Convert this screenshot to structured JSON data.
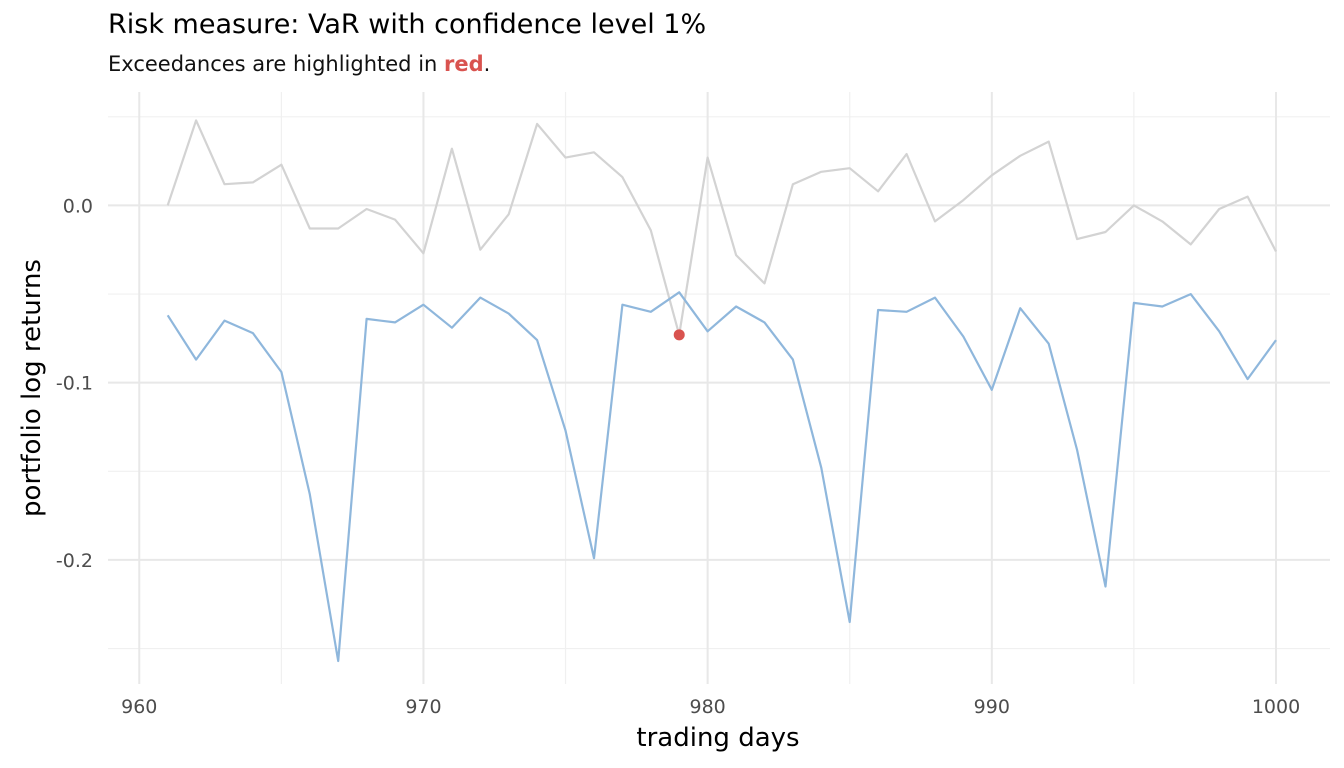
{
  "chart_data": {
    "type": "line",
    "title": "Risk measure: VaR with confidence level 1%",
    "subtitle": {
      "prefix": "Exceedances are highlighted in ",
      "highlight": "red",
      "suffix": "."
    },
    "xlabel": "trading days",
    "ylabel": "portfolio log returns",
    "xlim": [
      958.9,
      1001.9
    ],
    "ylim": [
      -0.27,
      0.064
    ],
    "x_major_ticks": [
      960,
      970,
      980,
      990,
      1000
    ],
    "x_tick_labels": [
      "960",
      "970",
      "980",
      "990",
      "1000"
    ],
    "x_minor_ticks": [
      965,
      975,
      985,
      995
    ],
    "y_major_ticks": [
      0.0,
      -0.1,
      -0.2
    ],
    "y_tick_labels": [
      "0.0",
      "-0.1",
      "-0.2"
    ],
    "y_minor_ticks": [
      0.05,
      -0.05,
      -0.15,
      -0.25
    ],
    "grid": true,
    "x": [
      961,
      962,
      963,
      964,
      965,
      966,
      967,
      968,
      969,
      970,
      971,
      972,
      973,
      974,
      975,
      976,
      977,
      978,
      979,
      980,
      981,
      982,
      983,
      984,
      985,
      986,
      987,
      988,
      989,
      990,
      991,
      992,
      993,
      994,
      995,
      996,
      997,
      998,
      999,
      1000
    ],
    "series": [
      {
        "role": "returns",
        "color": "#d3d3d3",
        "values": [
          0.0,
          0.048,
          0.012,
          0.013,
          0.023,
          -0.013,
          -0.013,
          -0.002,
          -0.008,
          -0.027,
          0.032,
          -0.025,
          -0.005,
          0.046,
          0.027,
          0.03,
          0.016,
          -0.014,
          -0.073,
          0.027,
          -0.028,
          -0.044,
          0.012,
          0.019,
          0.021,
          0.008,
          0.029,
          -0.009,
          0.003,
          0.017,
          0.028,
          0.036,
          -0.019,
          -0.015,
          0.0,
          -0.009,
          -0.022,
          -0.002,
          0.005,
          -0.026
        ]
      },
      {
        "role": "var",
        "color": "#8fb7dc",
        "values": [
          -0.062,
          -0.087,
          -0.065,
          -0.072,
          -0.094,
          -0.163,
          -0.257,
          -0.064,
          -0.066,
          -0.056,
          -0.069,
          -0.052,
          -0.061,
          -0.076,
          -0.127,
          -0.199,
          -0.056,
          -0.06,
          -0.049,
          -0.071,
          -0.057,
          -0.066,
          -0.087,
          -0.148,
          -0.235,
          -0.059,
          -0.06,
          -0.052,
          -0.074,
          -0.104,
          -0.058,
          -0.078,
          -0.138,
          -0.215,
          -0.055,
          -0.057,
          -0.05,
          -0.071,
          -0.098,
          -0.076
        ]
      }
    ],
    "exceedances": [
      {
        "x": 979,
        "y": -0.073,
        "color": "#d9534f"
      }
    ],
    "highlight_color": "#d9534f"
  }
}
